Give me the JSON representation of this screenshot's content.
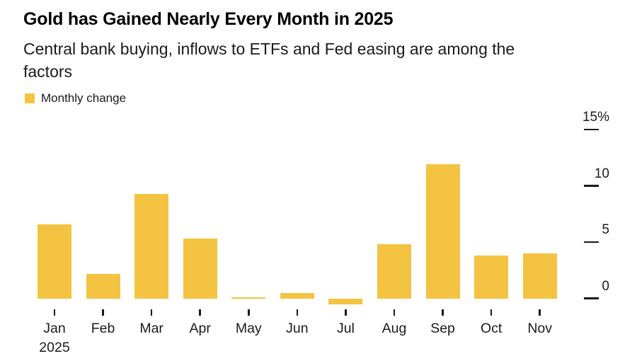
{
  "header": {
    "title": "Gold has Gained Nearly Every Month in 2025",
    "subtitle": "Central bank buying, inflows to ETFs and Fed easing are among the\nfactors",
    "legend": {
      "label": "Monthly change"
    }
  },
  "chart_data": {
    "type": "bar",
    "title": "Gold has Gained Nearly Every Month in 2025",
    "subtitle": "Central bank buying, inflows to ETFs and Fed easing are among the factors",
    "series_name": "Monthly change",
    "unit": "percent",
    "categories": [
      "Jan",
      "Feb",
      "Mar",
      "Apr",
      "May",
      "Jun",
      "Jul",
      "Aug",
      "Sep",
      "Oct",
      "Nov"
    ],
    "year_label": "2025",
    "values": [
      6.6,
      2.2,
      9.3,
      5.3,
      0.1,
      0.5,
      -0.5,
      4.8,
      11.9,
      3.8,
      4.0
    ],
    "y_ticks": [
      15,
      10,
      5,
      0
    ],
    "y_tick_labels": [
      "15%",
      "10",
      "5",
      "0"
    ],
    "ylim": [
      -1,
      15.5
    ],
    "grid": false,
    "legend_position": "top-left",
    "y_axis_side": "right",
    "bar_color": "#F5C342",
    "text_color": "#1a1a1a"
  }
}
